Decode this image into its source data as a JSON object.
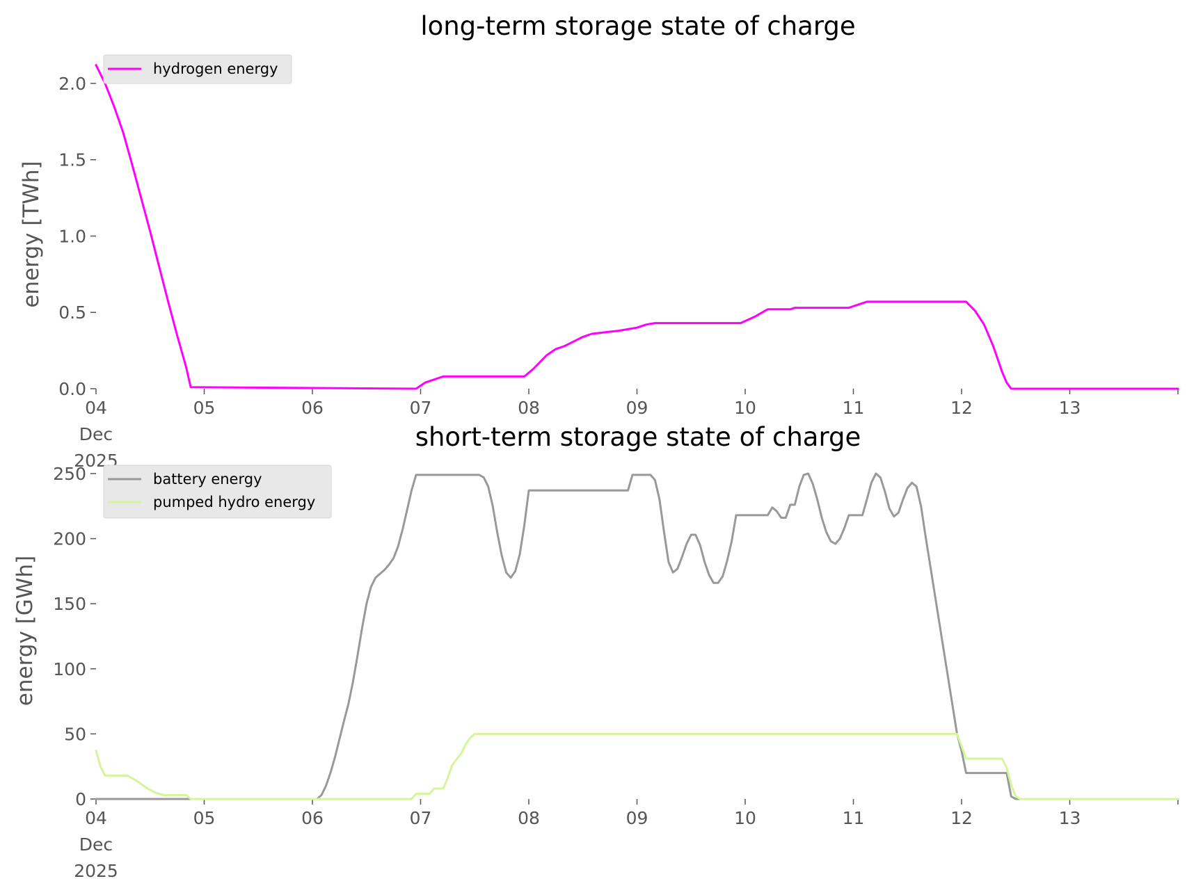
{
  "chart_data": [
    {
      "type": "line",
      "title": "long-term storage state of charge",
      "xlabel": "",
      "ylabel": "energy [TWh]",
      "xlim": [
        "2025-12-04 00:00",
        "2025-12-14 00:00"
      ],
      "ylim": [
        0,
        2.15
      ],
      "yticks": [
        0.0,
        0.5,
        1.0,
        1.5,
        2.0
      ],
      "ytick_labels": [
        "0.0",
        "0.5",
        "1.0",
        "1.5",
        "2.0"
      ],
      "xtick_labels": [
        "04\nDec\n2025",
        "05",
        "06",
        "07",
        "08",
        "09",
        "10",
        "11",
        "12",
        "13",
        ""
      ],
      "grid": false,
      "legend": "top-left",
      "series": [
        {
          "name": "hydrogen energy",
          "color": "#ff00ff",
          "points": [
            [
              "2025-12-04 00:00",
              2.12
            ],
            [
              "2025-12-04 02:00",
              2.0
            ],
            [
              "2025-12-04 04:00",
              1.85
            ],
            [
              "2025-12-04 06:00",
              1.68
            ],
            [
              "2025-12-04 08:00",
              1.47
            ],
            [
              "2025-12-04 10:00",
              1.25
            ],
            [
              "2025-12-04 12:00",
              1.03
            ],
            [
              "2025-12-04 14:00",
              0.8
            ],
            [
              "2025-12-04 16:00",
              0.57
            ],
            [
              "2025-12-04 18:00",
              0.35
            ],
            [
              "2025-12-04 20:00",
              0.14
            ],
            [
              "2025-12-04 21:00",
              0.01
            ],
            [
              "2025-12-06 23:00",
              0.0
            ],
            [
              "2025-12-07 01:00",
              0.04
            ],
            [
              "2025-12-07 03:00",
              0.06
            ],
            [
              "2025-12-07 05:00",
              0.08
            ],
            [
              "2025-12-07 23:00",
              0.08
            ],
            [
              "2025-12-08 01:00",
              0.13
            ],
            [
              "2025-12-08 04:00",
              0.22
            ],
            [
              "2025-12-08 06:00",
              0.26
            ],
            [
              "2025-12-08 08:00",
              0.28
            ],
            [
              "2025-12-08 10:00",
              0.31
            ],
            [
              "2025-12-08 12:00",
              0.34
            ],
            [
              "2025-12-08 14:00",
              0.36
            ],
            [
              "2025-12-08 17:00",
              0.37
            ],
            [
              "2025-12-08 20:00",
              0.38
            ],
            [
              "2025-12-08 22:00",
              0.39
            ],
            [
              "2025-12-09 00:00",
              0.4
            ],
            [
              "2025-12-09 02:00",
              0.42
            ],
            [
              "2025-12-09 04:00",
              0.43
            ],
            [
              "2025-12-09 23:00",
              0.43
            ],
            [
              "2025-12-10 02:00",
              0.47
            ],
            [
              "2025-12-10 05:00",
              0.52
            ],
            [
              "2025-12-10 10:00",
              0.52
            ],
            [
              "2025-12-10 11:00",
              0.53
            ],
            [
              "2025-12-10 23:00",
              0.53
            ],
            [
              "2025-12-11 02:00",
              0.56
            ],
            [
              "2025-12-11 03:00",
              0.57
            ],
            [
              "2025-12-12 01:00",
              0.57
            ],
            [
              "2025-12-12 03:00",
              0.51
            ],
            [
              "2025-12-12 05:00",
              0.42
            ],
            [
              "2025-12-12 07:00",
              0.28
            ],
            [
              "2025-12-12 09:00",
              0.11
            ],
            [
              "2025-12-12 10:00",
              0.04
            ],
            [
              "2025-12-12 11:00",
              0.0
            ],
            [
              "2025-12-14 00:00",
              0.0
            ]
          ]
        }
      ]
    },
    {
      "type": "line",
      "title": "short-term storage state of charge",
      "xlabel": "",
      "ylabel": "energy [GWh]",
      "xlim": [
        "2025-12-04 00:00",
        "2025-12-14 00:00"
      ],
      "ylim": [
        0,
        250
      ],
      "yticks": [
        0,
        50,
        100,
        150,
        200,
        250
      ],
      "ytick_labels": [
        "0",
        "50",
        "100",
        "150",
        "200",
        "250"
      ],
      "xtick_labels": [
        "04\nDec\n2025",
        "05",
        "06",
        "07",
        "08",
        "09",
        "10",
        "11",
        "12",
        "13",
        ""
      ],
      "grid": false,
      "legend": "top-left",
      "series": [
        {
          "name": "battery energy",
          "color": "#999999",
          "points": [
            [
              "2025-12-04 00:00",
              0
            ],
            [
              "2025-12-06 01:00",
              0
            ],
            [
              "2025-12-06 02:00",
              3
            ],
            [
              "2025-12-06 03:00",
              10
            ],
            [
              "2025-12-06 04:00",
              20
            ],
            [
              "2025-12-06 05:00",
              32
            ],
            [
              "2025-12-06 06:00",
              46
            ],
            [
              "2025-12-06 07:00",
              60
            ],
            [
              "2025-12-06 08:00",
              73
            ],
            [
              "2025-12-06 09:00",
              90
            ],
            [
              "2025-12-06 10:00",
              110
            ],
            [
              "2025-12-06 11:00",
              131
            ],
            [
              "2025-12-06 12:00",
              150
            ],
            [
              "2025-12-06 13:00",
              163
            ],
            [
              "2025-12-06 14:00",
              170
            ],
            [
              "2025-12-06 15:00",
              173
            ],
            [
              "2025-12-06 16:00",
              176
            ],
            [
              "2025-12-06 17:00",
              180
            ],
            [
              "2025-12-06 18:00",
              185
            ],
            [
              "2025-12-06 19:00",
              194
            ],
            [
              "2025-12-06 20:00",
              207
            ],
            [
              "2025-12-06 21:00",
              222
            ],
            [
              "2025-12-06 22:00",
              237
            ],
            [
              "2025-12-06 23:00",
              249
            ],
            [
              "2025-12-07 13:00",
              249
            ],
            [
              "2025-12-07 14:00",
              247
            ],
            [
              "2025-12-07 15:00",
              240
            ],
            [
              "2025-12-07 16:00",
              225
            ],
            [
              "2025-12-07 17:00",
              205
            ],
            [
              "2025-12-07 18:00",
              187
            ],
            [
              "2025-12-07 19:00",
              174
            ],
            [
              "2025-12-07 20:00",
              170
            ],
            [
              "2025-12-07 21:00",
              175
            ],
            [
              "2025-12-07 22:00",
              188
            ],
            [
              "2025-12-07 23:00",
              210
            ],
            [
              "2025-12-08 00:00",
              237
            ],
            [
              "2025-12-08 22:00",
              237
            ],
            [
              "2025-12-08 23:00",
              249
            ],
            [
              "2025-12-09 03:00",
              249
            ],
            [
              "2025-12-09 04:00",
              245
            ],
            [
              "2025-12-09 05:00",
              230
            ],
            [
              "2025-12-09 06:00",
              205
            ],
            [
              "2025-12-09 07:00",
              182
            ],
            [
              "2025-12-09 08:00",
              174
            ],
            [
              "2025-12-09 09:00",
              177
            ],
            [
              "2025-12-09 10:00",
              186
            ],
            [
              "2025-12-09 11:00",
              196
            ],
            [
              "2025-12-09 12:00",
              203
            ],
            [
              "2025-12-09 13:00",
              203
            ],
            [
              "2025-12-09 14:00",
              195
            ],
            [
              "2025-12-09 15:00",
              182
            ],
            [
              "2025-12-09 16:00",
              172
            ],
            [
              "2025-12-09 17:00",
              166
            ],
            [
              "2025-12-09 18:00",
              166
            ],
            [
              "2025-12-09 19:00",
              171
            ],
            [
              "2025-12-09 20:00",
              183
            ],
            [
              "2025-12-09 21:00",
              198
            ],
            [
              "2025-12-09 22:00",
              218
            ],
            [
              "2025-12-10 05:00",
              218
            ],
            [
              "2025-12-10 06:00",
              224
            ],
            [
              "2025-12-10 07:00",
              221
            ],
            [
              "2025-12-10 08:00",
              216
            ],
            [
              "2025-12-10 09:00",
              216
            ],
            [
              "2025-12-10 10:00",
              226
            ],
            [
              "2025-12-10 11:00",
              226
            ],
            [
              "2025-12-10 12:00",
              240
            ],
            [
              "2025-12-10 13:00",
              249
            ],
            [
              "2025-12-10 14:00",
              250
            ],
            [
              "2025-12-10 15:00",
              242
            ],
            [
              "2025-12-10 16:00",
              230
            ],
            [
              "2025-12-10 17:00",
              216
            ],
            [
              "2025-12-10 18:00",
              205
            ],
            [
              "2025-12-10 19:00",
              198
            ],
            [
              "2025-12-10 20:00",
              196
            ],
            [
              "2025-12-10 21:00",
              200
            ],
            [
              "2025-12-10 22:00",
              208
            ],
            [
              "2025-12-10 23:00",
              218
            ],
            [
              "2025-12-11 02:00",
              218
            ],
            [
              "2025-12-11 03:00",
              230
            ],
            [
              "2025-12-11 04:00",
              243
            ],
            [
              "2025-12-11 05:00",
              250
            ],
            [
              "2025-12-11 06:00",
              247
            ],
            [
              "2025-12-11 07:00",
              236
            ],
            [
              "2025-12-11 08:00",
              223
            ],
            [
              "2025-12-11 09:00",
              217
            ],
            [
              "2025-12-11 10:00",
              220
            ],
            [
              "2025-12-11 11:00",
              230
            ],
            [
              "2025-12-11 12:00",
              239
            ],
            [
              "2025-12-11 13:00",
              243
            ],
            [
              "2025-12-11 14:00",
              240
            ],
            [
              "2025-12-11 15:00",
              225
            ],
            [
              "2025-12-11 16:00",
              202
            ],
            [
              "2025-12-11 23:00",
              50
            ],
            [
              "2025-12-12 00:00",
              37
            ],
            [
              "2025-12-12 01:00",
              20
            ],
            [
              "2025-12-12 10:00",
              20
            ],
            [
              "2025-12-12 11:00",
              2
            ],
            [
              "2025-12-12 12:00",
              0
            ],
            [
              "2025-12-14 00:00",
              0
            ]
          ]
        },
        {
          "name": "pumped hydro energy",
          "color": "#d4f59a",
          "points": [
            [
              "2025-12-04 00:00",
              37
            ],
            [
              "2025-12-04 01:00",
              25
            ],
            [
              "2025-12-04 02:00",
              18
            ],
            [
              "2025-12-04 07:00",
              18
            ],
            [
              "2025-12-04 09:00",
              14
            ],
            [
              "2025-12-04 11:00",
              9
            ],
            [
              "2025-12-04 13:00",
              5
            ],
            [
              "2025-12-04 15:00",
              3
            ],
            [
              "2025-12-04 20:00",
              3
            ],
            [
              "2025-12-04 21:00",
              0
            ],
            [
              "2025-12-06 22:00",
              0
            ],
            [
              "2025-12-06 23:00",
              4
            ],
            [
              "2025-12-07 02:00",
              4
            ],
            [
              "2025-12-07 03:00",
              8
            ],
            [
              "2025-12-07 05:00",
              8
            ],
            [
              "2025-12-07 06:00",
              16
            ],
            [
              "2025-12-07 07:00",
              26
            ],
            [
              "2025-12-07 09:00",
              35
            ],
            [
              "2025-12-07 10:00",
              42
            ],
            [
              "2025-12-07 11:00",
              47
            ],
            [
              "2025-12-07 12:00",
              50
            ],
            [
              "2025-12-11 23:00",
              50
            ],
            [
              "2025-12-12 01:00",
              31
            ],
            [
              "2025-12-12 09:00",
              31
            ],
            [
              "2025-12-12 10:00",
              24
            ],
            [
              "2025-12-12 11:00",
              11
            ],
            [
              "2025-12-12 12:00",
              2
            ],
            [
              "2025-12-12 13:00",
              0
            ],
            [
              "2025-12-14 00:00",
              0
            ]
          ]
        }
      ]
    }
  ]
}
